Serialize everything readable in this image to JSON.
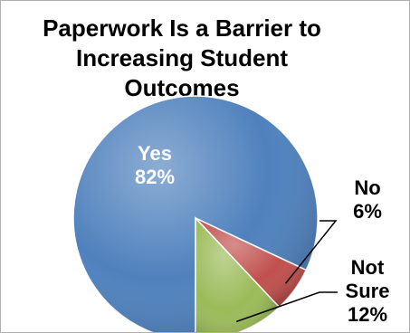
{
  "chart_data": {
    "type": "pie",
    "title_lines": [
      "Paperwork Is a Barrier to",
      "Increasing Student",
      "Outcomes"
    ],
    "slices": [
      {
        "label": "Yes",
        "value": 82,
        "display": "82%",
        "color": "#4f81bd"
      },
      {
        "label": "No",
        "value": 6,
        "display": "6%",
        "color": "#c0504d"
      },
      {
        "label": "Not Sure",
        "label_lines": [
          "Not",
          "Sure"
        ],
        "value": 12,
        "display": "12%",
        "color": "#9bbb59"
      }
    ],
    "legend": "none"
  }
}
